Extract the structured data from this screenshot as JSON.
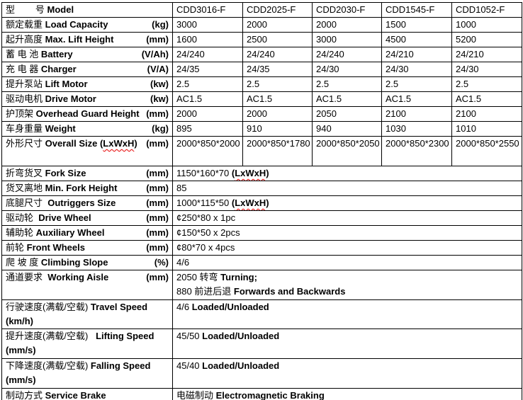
{
  "accent_colors": {
    "border": "#000000",
    "text": "#000000",
    "spellcheck_wavy": "#e60000",
    "background": "#ffffff"
  },
  "table": {
    "header": {
      "label_parts": [
        [
          "型        号 ",
          "r"
        ],
        [
          "Model",
          "b"
        ]
      ],
      "models": [
        "CDD3016-F",
        "CDD2025-F",
        "CDD2030-F",
        "CDD1545-F",
        "CDD1052-F"
      ]
    },
    "rows": [
      {
        "span": false,
        "tall": false,
        "label": [
          [
            "额定载重 ",
            "r"
          ],
          [
            "Load Capacity",
            "b"
          ]
        ],
        "unit": "(kg)",
        "values": [
          "3000",
          "2000",
          "2000",
          "1500",
          "1000"
        ]
      },
      {
        "span": false,
        "tall": false,
        "label": [
          [
            "起升高度 ",
            "r"
          ],
          [
            "Max. Lift Height",
            "b"
          ]
        ],
        "unit": "(mm)",
        "values": [
          "1600",
          "2500",
          "3000",
          "4500",
          "5200"
        ]
      },
      {
        "span": false,
        "tall": false,
        "label": [
          [
            "蓄 电 池 ",
            "r"
          ],
          [
            "Battery",
            "b"
          ]
        ],
        "unit": "(V/Ah)",
        "values": [
          "24/240",
          "24/240",
          "24/240",
          "24/210",
          "24/210"
        ]
      },
      {
        "span": false,
        "tall": false,
        "label": [
          [
            "充 电 器 ",
            "r"
          ],
          [
            "Charger",
            "b"
          ]
        ],
        "unit": "(V/A)",
        "values": [
          "24/35",
          "24/35",
          "24/30",
          "24/30",
          "24/30"
        ]
      },
      {
        "span": false,
        "tall": false,
        "label": [
          [
            "提升泵站 ",
            "r"
          ],
          [
            "Lift Motor",
            "b"
          ]
        ],
        "unit": "(kw)",
        "values": [
          "2.5",
          "2.5",
          "2.5",
          "2.5",
          "2.5"
        ]
      },
      {
        "span": false,
        "tall": false,
        "label": [
          [
            "驱动电机 ",
            "r"
          ],
          [
            "Drive Motor",
            "b"
          ]
        ],
        "unit": "(kw)",
        "values": [
          "AC1.5",
          "AC1.5",
          "AC1.5",
          "AC1.5",
          "AC1.5"
        ]
      },
      {
        "span": false,
        "tall": false,
        "label": [
          [
            "护顶架 ",
            "r"
          ],
          [
            "Overhead Guard Height",
            "b"
          ]
        ],
        "unit": "(mm)",
        "values": [
          "2000",
          "2000",
          "2050",
          "2100",
          "2100"
        ]
      },
      {
        "span": false,
        "tall": false,
        "label": [
          [
            "车身重量 ",
            "r"
          ],
          [
            "Weight",
            "b"
          ]
        ],
        "unit": "(kg)",
        "values": [
          "895",
          "910",
          "940",
          "1030",
          "1010"
        ]
      },
      {
        "span": false,
        "tall": true,
        "label": [
          [
            "外形尺寸 ",
            "r"
          ],
          [
            "Overall Size (",
            "b"
          ],
          [
            "LxWxH",
            "bw"
          ],
          [
            ")",
            "b"
          ]
        ],
        "unit": "(mm)",
        "values": [
          "2000*850*2000",
          "2000*850*1780",
          "2000*850*2050",
          "2000*850*2300",
          "2000*850*2550"
        ]
      },
      {
        "span": true,
        "tall": false,
        "label": [
          [
            "折弯货叉 ",
            "r"
          ],
          [
            "Fork Size",
            "b"
          ]
        ],
        "unit": "(mm)",
        "value_lines": [
          [
            [
              "1150*160*70 ",
              "r"
            ],
            [
              "(",
              "b"
            ],
            [
              "LxWxH",
              "bw"
            ],
            [
              ")",
              "b"
            ]
          ]
        ]
      },
      {
        "span": true,
        "tall": false,
        "label": [
          [
            "货叉离地 ",
            "r"
          ],
          [
            "Min. Fork Height",
            "b"
          ]
        ],
        "unit": "(mm)",
        "value_lines": [
          [
            [
              "85",
              "r"
            ]
          ]
        ]
      },
      {
        "span": true,
        "tall": false,
        "label": [
          [
            "底腿尺寸  ",
            "r"
          ],
          [
            "Outriggers Size",
            "b"
          ]
        ],
        "unit": "(mm)",
        "value_lines": [
          [
            [
              "1000*115*50 ",
              "r"
            ],
            [
              "(",
              "b"
            ],
            [
              "LxWxH",
              "bw"
            ],
            [
              ")",
              "b"
            ]
          ]
        ]
      },
      {
        "span": true,
        "tall": false,
        "label": [
          [
            "驱动轮  ",
            "r"
          ],
          [
            "Drive Wheel",
            "b"
          ]
        ],
        "unit": "(mm)",
        "value_lines": [
          [
            [
              "¢250*80 x 1pc",
              "r"
            ]
          ]
        ]
      },
      {
        "span": true,
        "tall": false,
        "label": [
          [
            "辅助轮 ",
            "r"
          ],
          [
            "Auxiliary Wheel",
            "b"
          ]
        ],
        "unit": "(mm)",
        "value_lines": [
          [
            [
              "¢150*50 x 2pcs",
              "r"
            ]
          ]
        ]
      },
      {
        "span": true,
        "tall": false,
        "label": [
          [
            "前轮 ",
            "r"
          ],
          [
            "Front Wheels",
            "b"
          ]
        ],
        "unit": "(mm)",
        "value_lines": [
          [
            [
              "¢80*70 x 4pcs",
              "r"
            ]
          ]
        ]
      },
      {
        "span": true,
        "tall": false,
        "label": [
          [
            "爬 坡 度 ",
            "r"
          ],
          [
            "Climbing Slope",
            "b"
          ]
        ],
        "unit": "(%)",
        "value_lines": [
          [
            [
              "4/6",
              "r"
            ]
          ]
        ]
      },
      {
        "span": true,
        "tall": true,
        "label": [
          [
            "通道要求  ",
            "r"
          ],
          [
            "Working Aisle",
            "b"
          ]
        ],
        "unit": "(mm)",
        "value_lines": [
          [
            [
              "2050 转弯 ",
              "r"
            ],
            [
              "Turning;",
              "b"
            ]
          ],
          [
            [
              "880 前进后退 ",
              "r"
            ],
            [
              "Forwards and Backwards",
              "b"
            ]
          ]
        ]
      },
      {
        "span": true,
        "tall": false,
        "label": [
          [
            "行驶速度(满载/空载) ",
            "r"
          ],
          [
            "Travel Speed (km/h)",
            "b"
          ]
        ],
        "unit": "",
        "value_lines": [
          [
            [
              "4/6 ",
              "r"
            ],
            [
              "Loaded/Unloaded",
              "b"
            ]
          ]
        ]
      },
      {
        "span": true,
        "tall": true,
        "label": [
          [
            "提升速度(满载/空载)   ",
            "r"
          ],
          [
            "Lifting Speed",
            "b"
          ]
        ],
        "unit": "",
        "unit2": "(mm/s)",
        "value_lines": [
          [
            [
              "45/50 ",
              "r"
            ],
            [
              "Loaded/Unloaded",
              "b"
            ]
          ]
        ]
      },
      {
        "span": true,
        "tall": true,
        "label": [
          [
            "下降速度(满载/空载) ",
            "r"
          ],
          [
            "Falling Speed",
            "b"
          ]
        ],
        "unit": "",
        "unit2": "(mm/s)",
        "value_lines": [
          [
            [
              "45/40 ",
              "r"
            ],
            [
              "Loaded/Unloaded",
              "b"
            ]
          ]
        ]
      },
      {
        "span": true,
        "tall": false,
        "label": [
          [
            "制动方式 ",
            "r"
          ],
          [
            "Service Brake",
            "b"
          ]
        ],
        "unit": "",
        "value_lines": [
          [
            [
              "电磁制动 ",
              "r"
            ],
            [
              "Electromagnetic Braking",
              "b"
            ]
          ]
        ]
      }
    ]
  }
}
